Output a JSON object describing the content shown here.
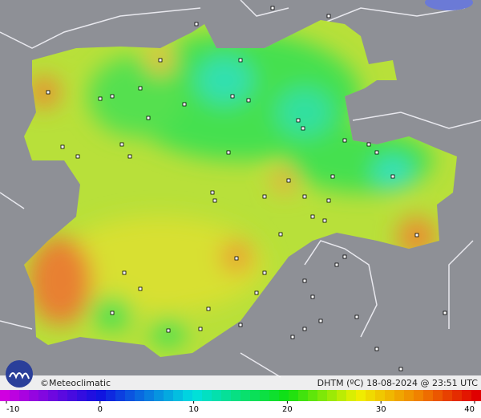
{
  "footer": {
    "credit": "©Meteoclimatic",
    "caption": "DHTM (ºC) 18-08-2024 @ 23:51 UTC"
  },
  "colorbar": {
    "lim": [
      -10,
      40
    ],
    "ticks": [
      -10,
      0,
      10,
      20,
      30,
      40
    ]
  }
}
